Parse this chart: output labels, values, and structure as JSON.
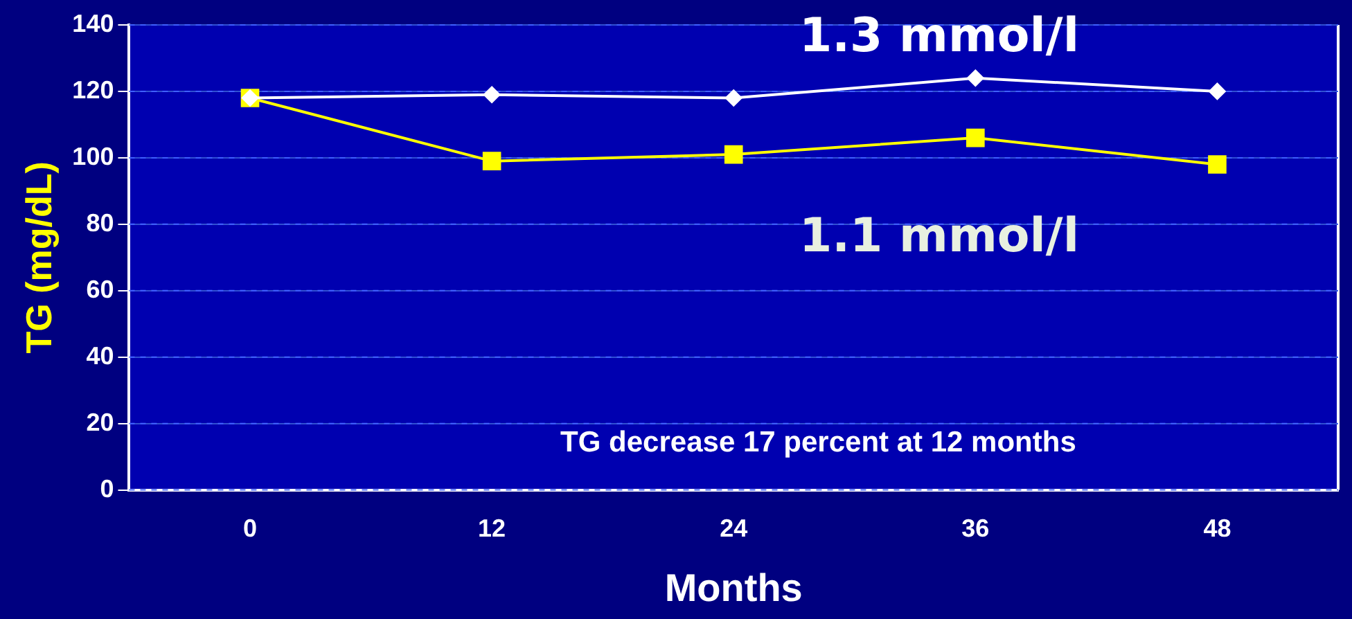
{
  "chart_data": {
    "type": "line",
    "xlabel": "Months",
    "ylabel": "TG (mg/dL)",
    "categories": [
      "0",
      "12",
      "24",
      "36",
      "48"
    ],
    "series": [
      {
        "color": "#ffffff",
        "values": [
          118,
          119,
          118,
          124,
          120
        ],
        "marker": "diamond"
      },
      {
        "color": "#ffff00",
        "values": [
          118,
          99,
          101,
          106,
          98
        ],
        "marker": "square"
      }
    ],
    "ylim": [
      0,
      140
    ],
    "yticks": [
      0,
      20,
      40,
      60,
      80,
      100,
      120,
      140
    ],
    "grid": "y",
    "annotations": [
      "1.3 mmol/l",
      "1.1 mmol/l",
      "TG decrease 17 percent at 12 months"
    ],
    "legend": false
  }
}
